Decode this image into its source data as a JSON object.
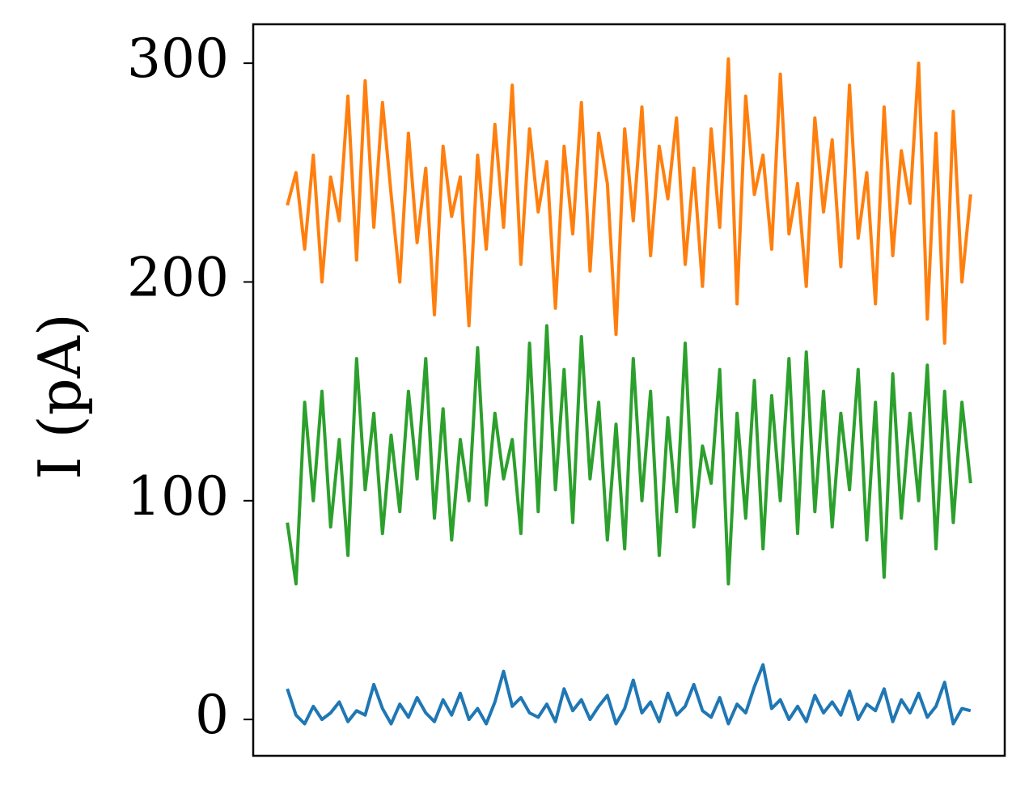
{
  "chart_data": {
    "type": "line",
    "ylabel": "I (pA)",
    "x": [
      0,
      1,
      2,
      3,
      4,
      5,
      6,
      7,
      8,
      9,
      10,
      11,
      12,
      13,
      14,
      15,
      16,
      17,
      18,
      19,
      20,
      21,
      22,
      23,
      24,
      25,
      26,
      27,
      28,
      29,
      30,
      31,
      32,
      33,
      34,
      35,
      36,
      37,
      38,
      39,
      40,
      41,
      42,
      43,
      44,
      45,
      46,
      47,
      48,
      49,
      50,
      51,
      52,
      53,
      54,
      55,
      56,
      57,
      58,
      59,
      60,
      61,
      62,
      63,
      64,
      65,
      66,
      67,
      68,
      69,
      70,
      71,
      72,
      73,
      74,
      75,
      76,
      77,
      78,
      79
    ],
    "xlim": [
      -3.95,
      82.95
    ],
    "ylim": [
      -16.6,
      317.8
    ],
    "yticks": [
      0,
      100,
      200,
      300
    ],
    "series": [
      {
        "color": "#1f77b4",
        "values": [
          14,
          2,
          -2,
          6,
          0,
          3,
          8,
          -1,
          4,
          2,
          16,
          5,
          -2,
          7,
          1,
          10,
          3,
          -1,
          9,
          2,
          12,
          0,
          5,
          -2,
          8,
          22,
          6,
          10,
          3,
          1,
          7,
          -1,
          14,
          4,
          9,
          0,
          6,
          11,
          -2,
          5,
          18,
          3,
          8,
          -1,
          12,
          2,
          6,
          16,
          4,
          1,
          10,
          -2,
          7,
          3,
          15,
          25,
          5,
          9,
          0,
          6,
          -1,
          11,
          3,
          8,
          2,
          13,
          0,
          7,
          4,
          14,
          -1,
          9,
          3,
          12,
          1,
          6,
          17,
          -2,
          5,
          4
        ]
      },
      {
        "color": "#ff7f0e",
        "values": [
          235,
          250,
          215,
          258,
          200,
          248,
          228,
          285,
          210,
          292,
          225,
          282,
          240,
          200,
          268,
          218,
          252,
          185,
          262,
          230,
          248,
          180,
          258,
          215,
          272,
          225,
          290,
          208,
          270,
          232,
          255,
          188,
          262,
          222,
          282,
          205,
          268,
          245,
          176,
          270,
          228,
          280,
          212,
          262,
          238,
          275,
          208,
          252,
          198,
          270,
          225,
          302,
          190,
          285,
          240,
          258,
          215,
          295,
          222,
          245,
          198,
          275,
          232,
          265,
          207,
          290,
          220,
          250,
          190,
          280,
          212,
          260,
          236,
          300,
          183,
          268,
          172,
          278,
          200,
          240
        ]
      },
      {
        "color": "#2ca02c",
        "values": [
          90,
          62,
          145,
          100,
          150,
          88,
          128,
          75,
          165,
          105,
          140,
          85,
          130,
          95,
          150,
          110,
          165,
          92,
          142,
          82,
          128,
          100,
          170,
          98,
          140,
          110,
          128,
          85,
          172,
          95,
          180,
          105,
          160,
          90,
          175,
          110,
          145,
          82,
          135,
          78,
          165,
          100,
          150,
          75,
          138,
          95,
          172,
          88,
          125,
          108,
          160,
          62,
          140,
          92,
          155,
          78,
          148,
          100,
          165,
          85,
          168,
          95,
          150,
          88,
          140,
          105,
          160,
          82,
          145,
          65,
          158,
          92,
          140,
          100,
          162,
          78,
          150,
          90,
          145,
          108
        ]
      }
    ]
  }
}
